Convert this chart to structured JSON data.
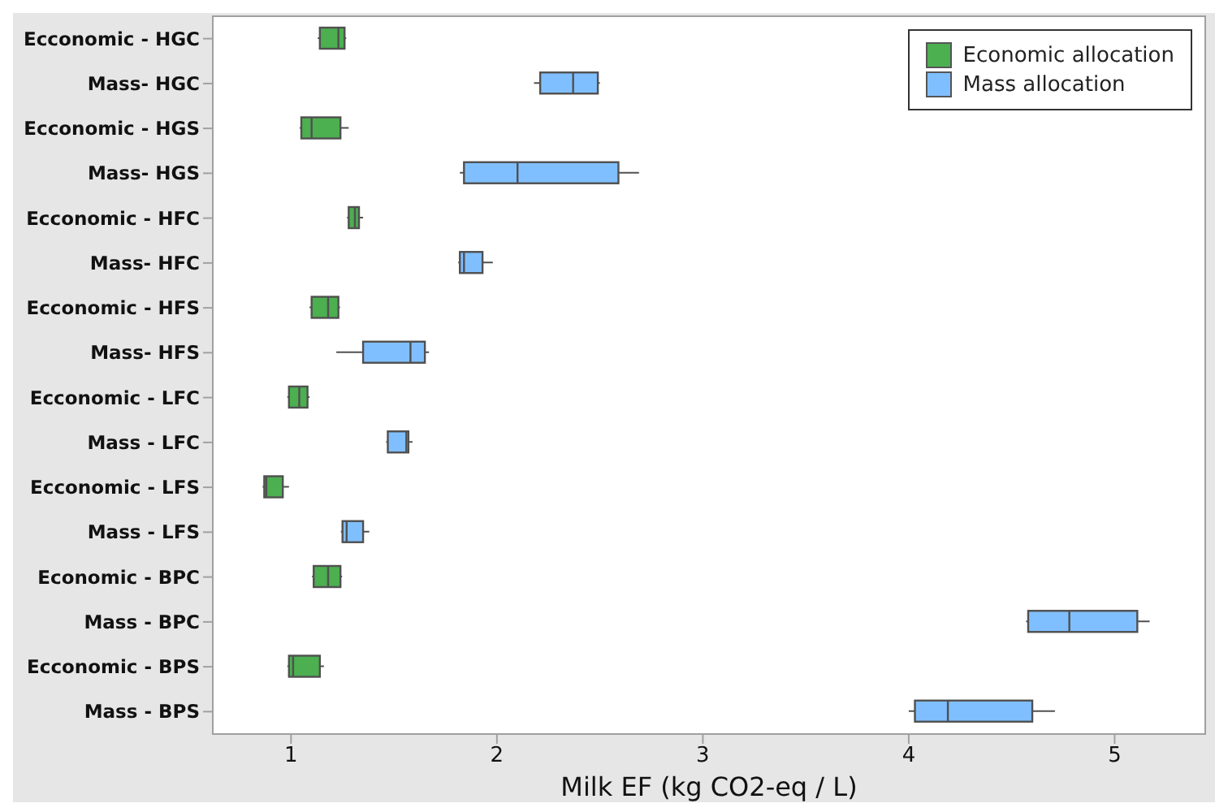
{
  "chart_data": {
    "type": "box",
    "orientation": "horizontal",
    "xlabel": "Milk EF (kg CO2-eq / L)",
    "legend": "top right",
    "categories": [
      "Ecconomic - HGC",
      "Mass- HGC",
      "Ecconomic - HGS",
      "Mass- HGS",
      "Ecconomic - HFC",
      "Mass- HFC",
      "Ecconomic - HFS",
      "Mass- HFS",
      "Ecconomic - LFC",
      "Mass - LFC",
      "Ecconomic - LFS",
      "Mass - LFS",
      "Economic - BPC",
      "Mass - BPC",
      "Ecconomic - BPS",
      "Mass - BPS"
    ],
    "xlim": [
      0.62,
      5.44
    ],
    "xticks": [
      1,
      2,
      3,
      4,
      5
    ],
    "series": [
      {
        "name": "Economic allocation",
        "color": "#4caf50",
        "boxes": [
          {
            "low": 1.13,
            "q1": 1.14,
            "median": 1.23,
            "q3": 1.26,
            "high": 1.26
          },
          null,
          {
            "low": 1.05,
            "q1": 1.05,
            "median": 1.1,
            "q3": 1.24,
            "high": 1.28
          },
          null,
          {
            "low": 1.28,
            "q1": 1.28,
            "median": 1.31,
            "q3": 1.33,
            "high": 1.35
          },
          null,
          {
            "low": 1.09,
            "q1": 1.1,
            "median": 1.18,
            "q3": 1.23,
            "high": 1.23
          },
          null,
          {
            "low": 0.99,
            "q1": 0.99,
            "median": 1.04,
            "q3": 1.08,
            "high": 1.09
          },
          null,
          {
            "low": 0.87,
            "q1": 0.87,
            "median": 0.88,
            "q3": 0.96,
            "high": 0.99
          },
          null,
          {
            "low": 1.11,
            "q1": 1.11,
            "median": 1.18,
            "q3": 1.24,
            "high": 1.24
          },
          null,
          {
            "low": 0.99,
            "q1": 0.99,
            "median": 1.01,
            "q3": 1.14,
            "high": 1.16
          },
          null
        ]
      },
      {
        "name": "Mass allocation",
        "color": "#80bfff",
        "boxes": [
          null,
          {
            "low": 2.18,
            "q1": 2.21,
            "median": 2.37,
            "q3": 2.49,
            "high": 2.5
          },
          null,
          {
            "low": 1.82,
            "q1": 1.84,
            "median": 2.1,
            "q3": 2.59,
            "high": 2.69
          },
          null,
          {
            "low": 1.82,
            "q1": 1.82,
            "median": 1.84,
            "q3": 1.93,
            "high": 1.98
          },
          null,
          {
            "low": 1.22,
            "q1": 1.35,
            "median": 1.58,
            "q3": 1.65,
            "high": 1.67
          },
          null,
          {
            "low": 1.47,
            "q1": 1.47,
            "median": 1.56,
            "q3": 1.57,
            "high": 1.59
          },
          null,
          {
            "low": 1.25,
            "q1": 1.25,
            "median": 1.27,
            "q3": 1.35,
            "high": 1.38
          },
          null,
          {
            "low": 4.57,
            "q1": 4.58,
            "median": 4.78,
            "q3": 5.11,
            "high": 5.17
          },
          null,
          {
            "low": 4.0,
            "q1": 4.03,
            "median": 4.19,
            "q3": 4.6,
            "high": 4.71
          }
        ]
      }
    ]
  }
}
